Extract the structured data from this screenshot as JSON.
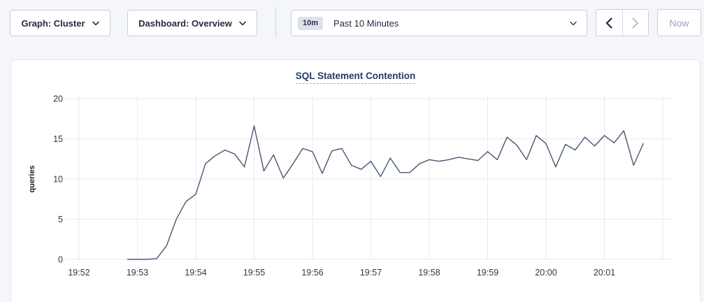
{
  "toolbar": {
    "graph_dropdown": {
      "label": "Graph: Cluster"
    },
    "dashboard_dropdown": {
      "label": "Dashboard: Overview"
    },
    "time_selector": {
      "badge": "10m",
      "label": "Past 10 Minutes"
    },
    "now_button": {
      "label": "Now",
      "disabled": true
    },
    "prev_enabled": true,
    "next_enabled": false
  },
  "colors": {
    "page_bg": "#f4f6fa",
    "accent_navy": "#242c41",
    "title_blue": "#243b6b",
    "line": "#475872",
    "grid": "#e8eaef",
    "disabled": "#b9c1d2"
  },
  "chart_data": {
    "type": "line",
    "title": "SQL Statement Contention",
    "xlabel": "",
    "ylabel": "queries",
    "ylim": [
      0,
      20
    ],
    "yticks": [
      0,
      5,
      10,
      15,
      20
    ],
    "xticks": [
      "19:52",
      "19:53",
      "19:54",
      "19:55",
      "19:56",
      "19:57",
      "19:58",
      "19:59",
      "20:00",
      "20:01"
    ],
    "x_domain_minutes": 10,
    "grid": true,
    "legend": "none",
    "series": [
      {
        "name": "queries",
        "color": "#475872",
        "start_offset_sec": 50,
        "interval_sec": 10,
        "values": [
          0,
          0,
          0,
          0.1,
          1.7,
          5.0,
          7.2,
          8.1,
          11.9,
          12.9,
          13.6,
          13.1,
          11.5,
          16.6,
          11.0,
          13.0,
          10.1,
          11.9,
          13.8,
          13.4,
          10.7,
          13.5,
          13.8,
          11.7,
          11.2,
          12.2,
          10.3,
          12.6,
          10.8,
          10.8,
          11.9,
          12.4,
          12.2,
          12.4,
          12.7,
          12.5,
          12.3,
          13.4,
          12.4,
          15.2,
          14.2,
          12.4,
          15.4,
          14.4,
          11.5,
          14.3,
          13.6,
          15.2,
          14.1,
          15.4,
          14.5,
          16.0,
          11.7,
          14.4
        ]
      }
    ]
  }
}
